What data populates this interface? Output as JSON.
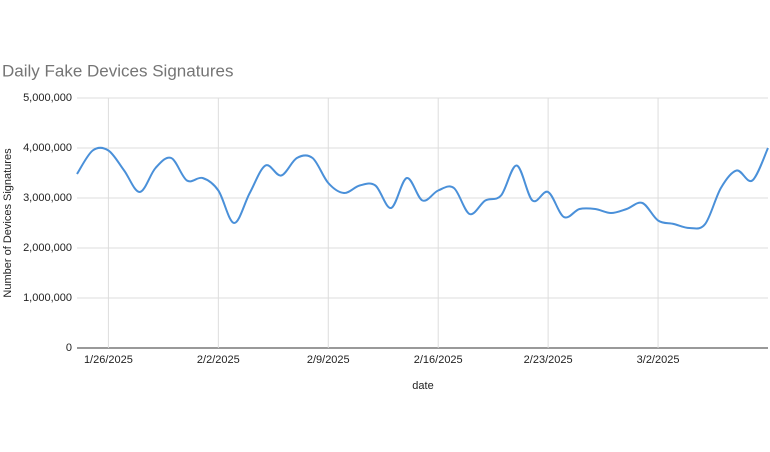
{
  "chart_data": {
    "type": "line",
    "title": "Daily Fake Devices Signatures",
    "x_label": "date",
    "y_label": "Number of Devices Signatures",
    "x": [
      "1/24/2025",
      "1/25/2025",
      "1/26/2025",
      "1/27/2025",
      "1/28/2025",
      "1/29/2025",
      "1/30/2025",
      "1/31/2025",
      "2/1/2025",
      "2/2/2025",
      "2/3/2025",
      "2/4/2025",
      "2/5/2025",
      "2/6/2025",
      "2/7/2025",
      "2/8/2025",
      "2/9/2025",
      "2/10/2025",
      "2/11/2025",
      "2/12/2025",
      "2/13/2025",
      "2/14/2025",
      "2/15/2025",
      "2/16/2025",
      "2/17/2025",
      "2/18/2025",
      "2/19/2025",
      "2/20/2025",
      "2/21/2025",
      "2/22/2025",
      "2/23/2025",
      "2/24/2025",
      "2/25/2025",
      "2/26/2025",
      "2/27/2025",
      "2/28/2025",
      "3/1/2025",
      "3/2/2025",
      "3/3/2025",
      "3/4/2025",
      "3/5/2025",
      "3/6/2025",
      "3/7/2025",
      "3/8/2025",
      "3/9/2025"
    ],
    "series": [
      {
        "name": "Number of Devices Signatures",
        "color": "#4a90d9",
        "values": [
          3480000,
          3950000,
          3950000,
          3550000,
          3120000,
          3600000,
          3800000,
          3350000,
          3400000,
          3150000,
          2500000,
          3100000,
          3650000,
          3450000,
          3800000,
          3800000,
          3300000,
          3100000,
          3250000,
          3250000,
          2800000,
          3400000,
          2950000,
          3150000,
          3200000,
          2680000,
          2950000,
          3050000,
          3650000,
          2950000,
          3120000,
          2620000,
          2780000,
          2780000,
          2700000,
          2780000,
          2900000,
          2550000,
          2480000,
          2400000,
          2480000,
          3200000,
          3550000,
          3350000,
          4000000
        ]
      }
    ],
    "xlim": [
      "1/24/2025",
      "3/9/2025"
    ],
    "xticks": [
      "1/26/2025",
      "2/2/2025",
      "2/9/2025",
      "2/16/2025",
      "2/23/2025",
      "3/2/2025"
    ],
    "ylim": [
      0,
      5000000
    ],
    "yticks": [
      0,
      {
        "value": 1000000,
        "label": "1,000,000"
      },
      {
        "value": 2000000,
        "label": "2,000,000"
      },
      {
        "value": 3000000,
        "label": "3,000,000"
      },
      {
        "value": 4000000,
        "label": "4,000,000"
      },
      {
        "value": 5000000,
        "label": "5,000,000"
      }
    ],
    "grid": true
  }
}
